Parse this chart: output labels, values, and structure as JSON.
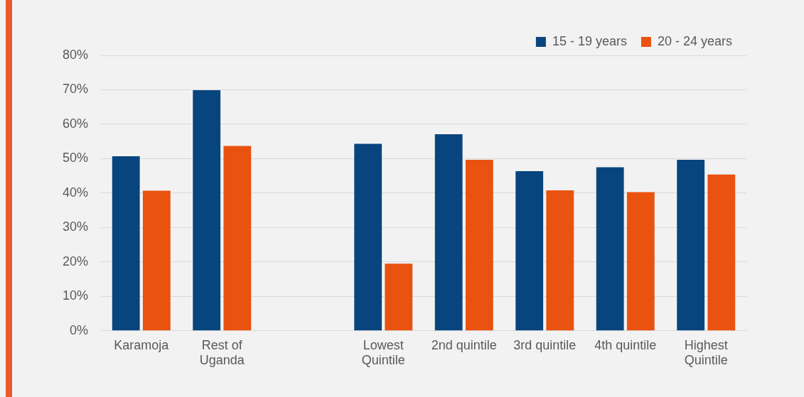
{
  "chart_data": {
    "type": "bar",
    "categories": [
      "Karamoja",
      "Rest of Uganda",
      null,
      "Lowest Quintile",
      "2nd quintile",
      "3rd quintile",
      "4th quintile",
      "Highest Quintile"
    ],
    "series": [
      {
        "name": "15 - 19 years",
        "color": "#08457e",
        "values": [
          50.7,
          69.9,
          null,
          54.3,
          57.1,
          46.4,
          47.5,
          49.7
        ]
      },
      {
        "name": "20 - 24 years",
        "color": "#ea520f",
        "values": [
          40.7,
          53.7,
          null,
          19.5,
          49.7,
          40.8,
          40.3,
          45.4
        ]
      }
    ],
    "ylim": [
      0,
      80
    ],
    "yticks": [
      {
        "value": 0,
        "label": "0%"
      },
      {
        "value": 10,
        "label": "10%"
      },
      {
        "value": 20,
        "label": "20%"
      },
      {
        "value": 30,
        "label": "30%"
      },
      {
        "value": 40,
        "label": "40%"
      },
      {
        "value": 50,
        "label": "50%"
      },
      {
        "value": 60,
        "label": "60%"
      },
      {
        "value": 70,
        "label": "70%"
      },
      {
        "value": 80,
        "label": "80%"
      }
    ],
    "grid": "y",
    "legend": "top right"
  }
}
